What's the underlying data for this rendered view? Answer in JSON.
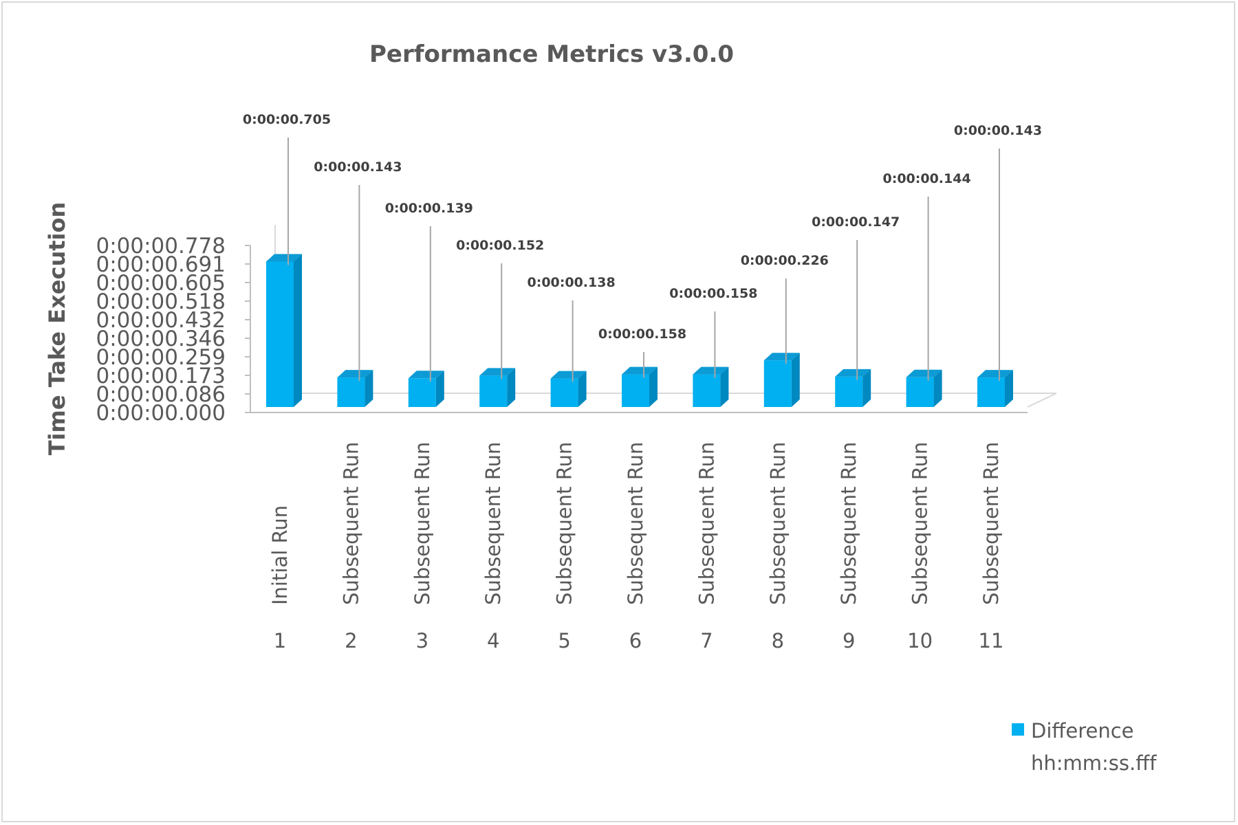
{
  "chart_data": {
    "type": "bar",
    "title": "Performance Metrics v3.0.0",
    "ylabel": "Time Take Execution",
    "xlabel": "",
    "y_ticks": [
      "0:00:00.000",
      "0:00:00.086",
      "0:00:00.173",
      "0:00:00.259",
      "0:00:00.346",
      "0:00:00.432",
      "0:00:00.518",
      "0:00:00.605",
      "0:00:00.691",
      "0:00:00.778"
    ],
    "ylim": [
      0,
      0.778
    ],
    "categories": [
      "Initial Run",
      "Subsequent Run",
      "Subsequent Run",
      "Subsequent Run",
      "Subsequent Run",
      "Subsequent Run",
      "Subsequent Run",
      "Subsequent Run",
      "Subsequent Run",
      "Subsequent Run",
      "Subsequent Run"
    ],
    "run_numbers": [
      "1",
      "2",
      "3",
      "4",
      "5",
      "6",
      "7",
      "8",
      "9",
      "10",
      "11"
    ],
    "series": [
      {
        "name": "Difference hh:mm:ss.fff",
        "values": [
          0.705,
          0.143,
          0.139,
          0.152,
          0.138,
          0.158,
          0.158,
          0.226,
          0.147,
          0.144,
          0.143
        ],
        "labels": [
          "0:00:00.705",
          "0:00:00.143",
          "0:00:00.139",
          "0:00:00.152",
          "0:00:00.138",
          "0:00:00.158",
          "0:00:00.158",
          "0:00:00.226",
          "0:00:00.147",
          "0:00:00.144",
          "0:00:00.143"
        ]
      }
    ],
    "legend": {
      "line1": "Difference",
      "line2": "hh:mm:ss.fff",
      "position": "bottom-right"
    },
    "colors": {
      "front": "#00b0f0",
      "side": "#0088c0",
      "top": "#0d9bd6",
      "leader": "#a6a6a6",
      "axis": "#bfbfbf"
    },
    "grid": false,
    "style": "3d-column"
  }
}
